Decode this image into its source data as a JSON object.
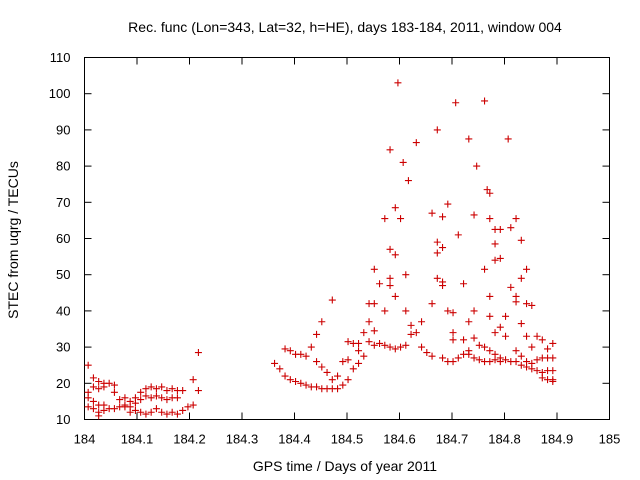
{
  "chart_data": {
    "type": "scatter",
    "title": "Rec. func (Lon=343, Lat=32, h=HE), days 183-184, 2011, window 004",
    "xlabel": "GPS time / Days of year 2011",
    "ylabel": "STEC from uqrg / TECUs",
    "xlim": [
      184,
      185
    ],
    "ylim": [
      10,
      110
    ],
    "xticks": [
      "184",
      "184.1",
      "184.2",
      "184.3",
      "184.4",
      "184.5",
      "184.6",
      "184.7",
      "184.8",
      "184.9",
      "185"
    ],
    "yticks": [
      "10",
      "20",
      "30",
      "40",
      "50",
      "60",
      "70",
      "80",
      "90",
      "100",
      "110"
    ],
    "grid": false,
    "legend": "none",
    "marker_color": "#cc0000",
    "series": [
      {
        "points": [
          [
            184.007,
            25
          ],
          [
            184.007,
            17.5
          ],
          [
            184.007,
            16
          ],
          [
            184.007,
            13.5
          ],
          [
            184.017,
            21.5
          ],
          [
            184.017,
            19
          ],
          [
            184.017,
            15
          ],
          [
            184.017,
            13
          ],
          [
            184.027,
            20.5
          ],
          [
            184.027,
            18.5
          ],
          [
            184.027,
            14
          ],
          [
            184.027,
            12
          ],
          [
            184.027,
            11
          ],
          [
            184.037,
            20
          ],
          [
            184.037,
            19
          ],
          [
            184.037,
            14
          ],
          [
            184.037,
            12.5
          ],
          [
            184.047,
            20
          ],
          [
            184.047,
            13
          ],
          [
            184.057,
            19.5
          ],
          [
            184.057,
            17.5
          ],
          [
            184.057,
            13
          ],
          [
            184.067,
            15.5
          ],
          [
            184.067,
            13.5
          ],
          [
            184.077,
            16
          ],
          [
            184.077,
            14
          ],
          [
            184.077,
            13.5
          ],
          [
            184.087,
            15
          ],
          [
            184.087,
            13.5
          ],
          [
            184.087,
            12
          ],
          [
            184.097,
            16
          ],
          [
            184.097,
            14.5
          ],
          [
            184.097,
            12.5
          ],
          [
            184.107,
            17.5
          ],
          [
            184.107,
            15.5
          ],
          [
            184.107,
            12
          ],
          [
            184.117,
            18.5
          ],
          [
            184.117,
            16.5
          ],
          [
            184.117,
            11.5
          ],
          [
            184.127,
            19
          ],
          [
            184.127,
            16
          ],
          [
            184.127,
            12
          ],
          [
            184.137,
            18.5
          ],
          [
            184.137,
            16.5
          ],
          [
            184.137,
            13
          ],
          [
            184.147,
            19
          ],
          [
            184.147,
            16
          ],
          [
            184.147,
            12
          ],
          [
            184.157,
            18
          ],
          [
            184.157,
            15.5
          ],
          [
            184.157,
            11.5
          ],
          [
            184.167,
            18.5
          ],
          [
            184.167,
            16
          ],
          [
            184.167,
            12
          ],
          [
            184.177,
            18
          ],
          [
            184.177,
            16
          ],
          [
            184.177,
            11.5
          ],
          [
            184.187,
            18
          ],
          [
            184.187,
            12.5
          ],
          [
            184.197,
            13.5
          ],
          [
            184.207,
            21
          ],
          [
            184.207,
            14
          ],
          [
            184.217,
            28.5
          ],
          [
            184.217,
            18
          ],
          [
            184.362,
            25.5
          ],
          [
            184.372,
            24
          ],
          [
            184.382,
            29.5
          ],
          [
            184.382,
            22
          ],
          [
            184.392,
            29
          ],
          [
            184.392,
            21
          ],
          [
            184.402,
            28
          ],
          [
            184.402,
            20.5
          ],
          [
            184.412,
            28
          ],
          [
            184.412,
            20
          ],
          [
            184.422,
            27.5
          ],
          [
            184.422,
            19.5
          ],
          [
            184.432,
            30
          ],
          [
            184.432,
            19
          ],
          [
            184.442,
            33.5
          ],
          [
            184.442,
            26
          ],
          [
            184.442,
            19
          ],
          [
            184.452,
            37
          ],
          [
            184.452,
            24.5
          ],
          [
            184.452,
            18.5
          ],
          [
            184.462,
            23
          ],
          [
            184.462,
            18.5
          ],
          [
            184.472,
            43
          ],
          [
            184.472,
            21
          ],
          [
            184.472,
            18.5
          ],
          [
            184.482,
            22
          ],
          [
            184.482,
            18.5
          ],
          [
            184.492,
            26
          ],
          [
            184.492,
            19.5
          ],
          [
            184.502,
            31.5
          ],
          [
            184.502,
            26.5
          ],
          [
            184.502,
            21
          ],
          [
            184.512,
            31
          ],
          [
            184.512,
            24
          ],
          [
            184.522,
            31
          ],
          [
            184.522,
            29
          ],
          [
            184.522,
            25.5
          ],
          [
            184.532,
            34
          ],
          [
            184.532,
            27.5
          ],
          [
            184.542,
            42
          ],
          [
            184.542,
            37
          ],
          [
            184.542,
            31.5
          ],
          [
            184.552,
            51.5
          ],
          [
            184.552,
            42
          ],
          [
            184.552,
            34.5
          ],
          [
            184.552,
            30.5
          ],
          [
            184.562,
            47.5
          ],
          [
            184.562,
            31
          ],
          [
            184.572,
            65.5
          ],
          [
            184.572,
            40
          ],
          [
            184.572,
            30.5
          ],
          [
            184.582,
            84.5
          ],
          [
            184.582,
            57
          ],
          [
            184.582,
            49
          ],
          [
            184.582,
            47
          ],
          [
            184.582,
            30
          ],
          [
            184.592,
            68.5
          ],
          [
            184.592,
            55.5
          ],
          [
            184.592,
            44
          ],
          [
            184.592,
            29.5
          ],
          [
            184.597,
            103
          ],
          [
            184.602,
            65.5
          ],
          [
            184.602,
            30
          ],
          [
            184.607,
            81
          ],
          [
            184.612,
            50
          ],
          [
            184.612,
            40
          ],
          [
            184.612,
            30.5
          ],
          [
            184.617,
            76
          ],
          [
            184.622,
            36
          ],
          [
            184.622,
            33.5
          ],
          [
            184.632,
            86.5
          ],
          [
            184.632,
            34
          ],
          [
            184.642,
            37
          ],
          [
            184.642,
            30
          ],
          [
            184.652,
            28.5
          ],
          [
            184.662,
            67
          ],
          [
            184.662,
            42
          ],
          [
            184.662,
            27.5
          ],
          [
            184.672,
            90
          ],
          [
            184.672,
            59
          ],
          [
            184.672,
            56
          ],
          [
            184.672,
            49
          ],
          [
            184.682,
            66
          ],
          [
            184.682,
            57.5
          ],
          [
            184.682,
            48
          ],
          [
            184.682,
            47
          ],
          [
            184.682,
            27
          ],
          [
            184.692,
            69.5
          ],
          [
            184.692,
            40
          ],
          [
            184.692,
            26
          ],
          [
            184.702,
            39.5
          ],
          [
            184.702,
            34
          ],
          [
            184.702,
            32
          ],
          [
            184.702,
            26
          ],
          [
            184.707,
            97.5
          ],
          [
            184.712,
            61
          ],
          [
            184.712,
            27
          ],
          [
            184.722,
            47.5
          ],
          [
            184.722,
            32
          ],
          [
            184.722,
            28
          ],
          [
            184.732,
            87.5
          ],
          [
            184.732,
            37
          ],
          [
            184.732,
            29
          ],
          [
            184.732,
            28
          ],
          [
            184.742,
            66.5
          ],
          [
            184.742,
            40
          ],
          [
            184.742,
            32.5
          ],
          [
            184.742,
            27
          ],
          [
            184.747,
            80
          ],
          [
            184.752,
            30.5
          ],
          [
            184.752,
            26.5
          ],
          [
            184.762,
            98
          ],
          [
            184.762,
            51.5
          ],
          [
            184.762,
            30
          ],
          [
            184.762,
            26
          ],
          [
            184.767,
            73.5
          ],
          [
            184.772,
            72.5
          ],
          [
            184.772,
            65.5
          ],
          [
            184.772,
            44
          ],
          [
            184.772,
            38.5
          ],
          [
            184.772,
            29
          ],
          [
            184.772,
            26
          ],
          [
            184.782,
            62.5
          ],
          [
            184.782,
            58.5
          ],
          [
            184.782,
            54
          ],
          [
            184.782,
            34
          ],
          [
            184.782,
            28
          ],
          [
            184.782,
            26.5
          ],
          [
            184.792,
            62.5
          ],
          [
            184.792,
            54.5
          ],
          [
            184.792,
            35.5
          ],
          [
            184.792,
            27
          ],
          [
            184.792,
            26
          ],
          [
            184.802,
            38.5
          ],
          [
            184.802,
            33
          ],
          [
            184.802,
            26.5
          ],
          [
            184.807,
            87.5
          ],
          [
            184.812,
            63
          ],
          [
            184.812,
            46.5
          ],
          [
            184.812,
            26
          ],
          [
            184.822,
            65.5
          ],
          [
            184.822,
            44
          ],
          [
            184.822,
            42.5
          ],
          [
            184.822,
            29
          ],
          [
            184.822,
            26
          ],
          [
            184.832,
            59.5
          ],
          [
            184.832,
            49
          ],
          [
            184.832,
            36.5
          ],
          [
            184.832,
            27.5
          ],
          [
            184.832,
            25
          ],
          [
            184.842,
            51.5
          ],
          [
            184.842,
            42
          ],
          [
            184.842,
            33
          ],
          [
            184.842,
            26
          ],
          [
            184.842,
            24.5
          ],
          [
            184.852,
            41.5
          ],
          [
            184.852,
            30
          ],
          [
            184.852,
            25.5
          ],
          [
            184.852,
            24
          ],
          [
            184.862,
            33
          ],
          [
            184.862,
            26.5
          ],
          [
            184.862,
            23.5
          ],
          [
            184.872,
            32
          ],
          [
            184.872,
            27
          ],
          [
            184.872,
            23
          ],
          [
            184.872,
            21.5
          ],
          [
            184.882,
            29.5
          ],
          [
            184.882,
            27
          ],
          [
            184.882,
            23.5
          ],
          [
            184.882,
            21
          ],
          [
            184.892,
            31
          ],
          [
            184.892,
            27
          ],
          [
            184.892,
            23.5
          ],
          [
            184.892,
            21
          ],
          [
            184.892,
            20.5
          ]
        ]
      }
    ]
  }
}
